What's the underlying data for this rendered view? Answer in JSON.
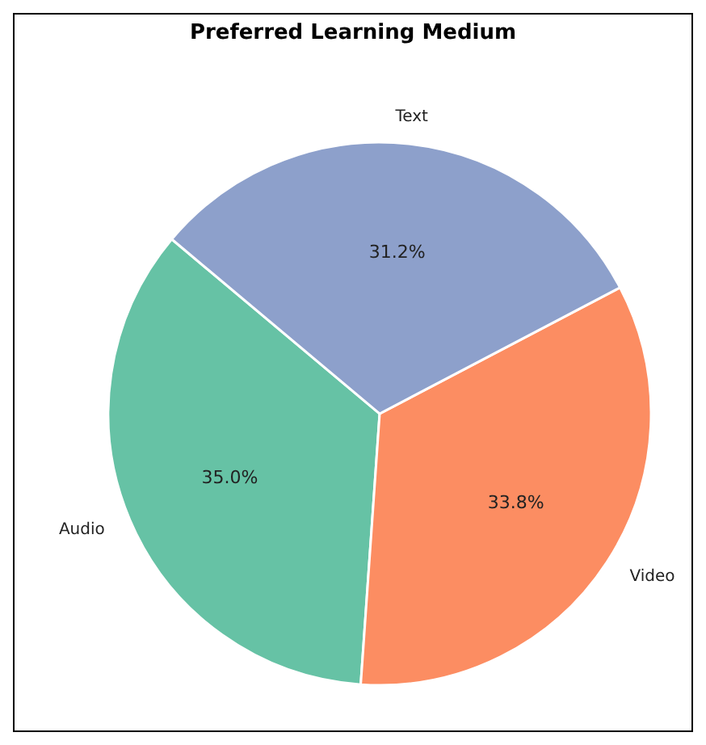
{
  "chart_data": {
    "type": "pie",
    "title": "Preferred Learning Medium",
    "categories": [
      "Audio",
      "Video",
      "Text"
    ],
    "values": [
      35.0,
      33.8,
      31.2
    ],
    "value_labels": [
      "35.0%",
      "33.8%",
      "31.2%"
    ],
    "colors": [
      "#66c2a5",
      "#fc8d62",
      "#8da0cb"
    ],
    "legend": false
  }
}
